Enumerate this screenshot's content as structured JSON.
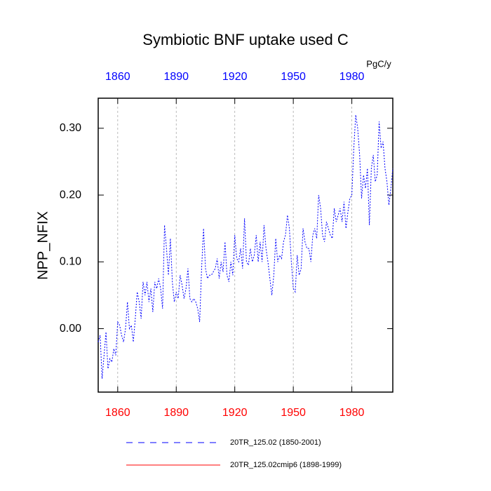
{
  "chart_data": {
    "type": "line",
    "title": "Symbiotic BNF uptake used C",
    "units": "PgC/y",
    "y_label": "NPP_NFIX",
    "xlim": [
      1850,
      2001
    ],
    "ylim": [
      -0.095,
      0.345
    ],
    "xticks": [
      1860,
      1890,
      1920,
      1950,
      1980
    ],
    "yticks": [
      {
        "value": 0,
        "label": "0.00"
      },
      {
        "value": 0.1,
        "label": "0.10"
      },
      {
        "value": 0.2,
        "label": "0.20"
      },
      {
        "value": 0.3,
        "label": "0.30"
      }
    ],
    "top_axis_color": "#0000ff",
    "bottom_axis_color": "#ff0000",
    "grid": true,
    "x": [
      1850,
      1851,
      1852,
      1853,
      1854,
      1855,
      1856,
      1857,
      1858,
      1859,
      1860,
      1861,
      1862,
      1863,
      1864,
      1865,
      1866,
      1867,
      1868,
      1869,
      1870,
      1871,
      1872,
      1873,
      1874,
      1875,
      1876,
      1877,
      1878,
      1879,
      1880,
      1881,
      1882,
      1883,
      1884,
      1885,
      1886,
      1887,
      1888,
      1889,
      1890,
      1891,
      1892,
      1893,
      1894,
      1895,
      1896,
      1897,
      1898,
      1899,
      1900,
      1901,
      1902,
      1903,
      1904,
      1905,
      1906,
      1907,
      1908,
      1909,
      1910,
      1911,
      1912,
      1913,
      1914,
      1915,
      1916,
      1917,
      1918,
      1919,
      1920,
      1921,
      1922,
      1923,
      1924,
      1925,
      1926,
      1927,
      1928,
      1929,
      1930,
      1931,
      1932,
      1933,
      1934,
      1935,
      1936,
      1937,
      1938,
      1939,
      1940,
      1941,
      1942,
      1943,
      1944,
      1945,
      1946,
      1947,
      1948,
      1949,
      1950,
      1951,
      1952,
      1953,
      1954,
      1955,
      1956,
      1957,
      1958,
      1959,
      1960,
      1961,
      1962,
      1963,
      1964,
      1965,
      1966,
      1967,
      1968,
      1969,
      1970,
      1971,
      1972,
      1973,
      1974,
      1975,
      1976,
      1977,
      1978,
      1979,
      1980,
      1981,
      1982,
      1983,
      1984,
      1985,
      1986,
      1987,
      1988,
      1989,
      1990,
      1991,
      1992,
      1993,
      1994,
      1995,
      1996,
      1997,
      1998,
      1999,
      2000,
      2001
    ],
    "series": [
      {
        "name": "20TR_125.02 (1850-2001)",
        "color": "#0000ff",
        "dash": "2,2",
        "values": [
          -0.02,
          -0.01,
          -0.075,
          -0.04,
          -0.005,
          -0.06,
          -0.045,
          -0.05,
          -0.03,
          -0.04,
          0.01,
          0.005,
          -0.01,
          -0.02,
          0.0,
          0.04,
          0.0,
          0.005,
          -0.02,
          0.015,
          0.055,
          0.04,
          0.015,
          0.07,
          0.05,
          0.07,
          0.04,
          0.06,
          0.025,
          0.07,
          0.06,
          0.075,
          0.06,
          0.03,
          0.155,
          0.12,
          0.08,
          0.135,
          0.07,
          0.04,
          0.055,
          0.045,
          0.08,
          0.065,
          0.045,
          0.06,
          0.09,
          0.045,
          0.04,
          0.045,
          0.04,
          0.03,
          0.01,
          0.09,
          0.15,
          0.09,
          0.075,
          0.08,
          0.08,
          0.085,
          0.09,
          0.105,
          0.075,
          0.1,
          0.085,
          0.13,
          0.08,
          0.07,
          0.1,
          0.08,
          0.14,
          0.105,
          0.1,
          0.12,
          0.09,
          0.165,
          0.1,
          0.095,
          0.12,
          0.1,
          0.11,
          0.14,
          0.1,
          0.13,
          0.1,
          0.155,
          0.12,
          0.1,
          0.075,
          0.05,
          0.08,
          0.135,
          0.1,
          0.11,
          0.105,
          0.13,
          0.14,
          0.17,
          0.15,
          0.1,
          0.06,
          0.055,
          0.11,
          0.08,
          0.09,
          0.15,
          0.13,
          0.12,
          0.12,
          0.1,
          0.14,
          0.15,
          0.135,
          0.2,
          0.18,
          0.14,
          0.13,
          0.16,
          0.15,
          0.14,
          0.135,
          0.18,
          0.16,
          0.17,
          0.18,
          0.16,
          0.19,
          0.15,
          0.175,
          0.195,
          0.2,
          0.27,
          0.32,
          0.3,
          0.26,
          0.195,
          0.23,
          0.21,
          0.24,
          0.155,
          0.24,
          0.26,
          0.22,
          0.23,
          0.31,
          0.27,
          0.28,
          0.24,
          0.22,
          0.185,
          0.21,
          0.24
        ]
      },
      {
        "name": "20TR_125.02cmip6 (1898-1999)",
        "color": "#ff0000",
        "values": [
          null,
          null,
          null,
          null,
          null,
          null,
          null,
          null,
          null,
          null,
          null,
          null,
          null,
          null,
          null,
          null,
          null,
          null,
          null,
          null,
          null,
          null,
          null,
          null,
          null,
          null,
          null,
          null,
          null,
          null,
          null,
          null,
          null,
          null,
          null,
          null,
          null,
          null,
          null,
          null,
          null,
          null,
          null,
          null,
          null,
          null,
          null,
          null,
          null,
          null,
          null,
          null,
          null,
          null,
          null,
          null,
          null,
          null,
          null,
          null,
          null,
          null,
          null,
          null,
          null,
          null,
          null,
          null,
          null,
          null,
          null,
          null,
          null,
          null,
          null,
          null,
          null,
          null,
          null,
          null,
          null,
          null,
          null,
          null,
          null,
          null,
          null,
          null,
          null,
          null,
          null,
          null,
          null,
          null,
          null,
          null,
          null,
          null,
          null,
          null,
          null,
          null,
          null,
          null,
          null,
          null,
          null,
          null,
          null,
          null,
          null,
          null,
          null,
          null,
          null,
          null,
          null,
          null,
          null,
          null,
          null,
          null,
          null,
          null,
          null,
          null,
          null,
          null,
          null,
          null,
          null,
          null,
          null,
          null,
          null,
          null,
          null,
          null,
          null,
          null,
          null,
          null,
          null,
          null,
          null,
          null,
          null,
          null,
          null,
          null,
          null,
          null
        ]
      }
    ]
  }
}
